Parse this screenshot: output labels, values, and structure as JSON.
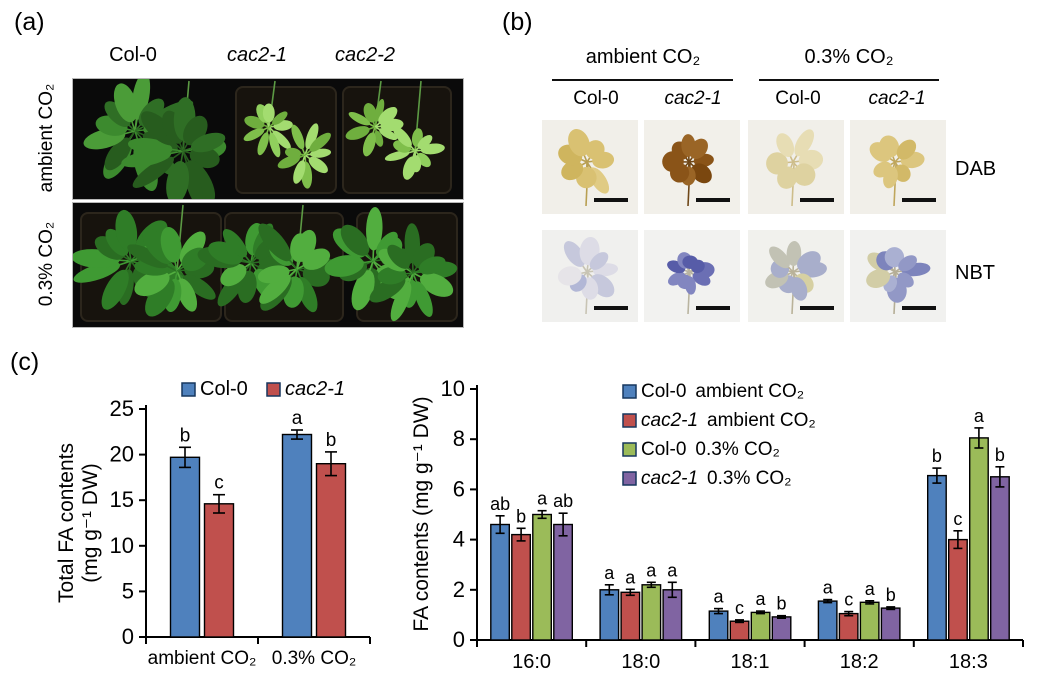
{
  "figure": {
    "panel_a": {
      "label": "(a)",
      "col_headers": [
        "Col-0",
        "cac2-1",
        "cac2-2"
      ],
      "row_labels": [
        "ambient CO₂",
        "0.3% CO₂"
      ]
    },
    "panel_b": {
      "label": "(b)",
      "group_headers": [
        "ambient CO₂",
        "0.3% CO₂"
      ],
      "col_headers": [
        "Col-0",
        "cac2-1",
        "Col-0",
        "cac2-1"
      ],
      "row_labels": [
        "DAB",
        "NBT"
      ]
    },
    "panel_c": {
      "label": "(c)"
    }
  },
  "chart_data": [
    {
      "type": "bar",
      "ylabel": "Total FA contents (mg g⁻¹ DW)",
      "ylabel_lines": [
        "Total FA contents",
        "(mg g⁻¹ DW)"
      ],
      "ylim": [
        0,
        25
      ],
      "yticks": [
        0,
        5,
        10,
        15,
        20,
        25
      ],
      "categories": [
        "ambient CO₂",
        "0.3% CO₂"
      ],
      "grid": false,
      "legend_position": "top",
      "series": [
        {
          "name": "Col-0",
          "italic": false,
          "color": "#4F81BD",
          "values": [
            19.7,
            22.2
          ],
          "errors": [
            1.1,
            0.5
          ],
          "sig_letters": [
            "b",
            "a"
          ]
        },
        {
          "name": "cac2-1",
          "italic": true,
          "color": "#C0504D",
          "values": [
            14.6,
            19.0
          ],
          "errors": [
            1.0,
            1.3
          ],
          "sig_letters": [
            "c",
            "b"
          ]
        }
      ]
    },
    {
      "type": "bar",
      "ylabel": "FA contents (mg g⁻¹ DW)",
      "ylim": [
        0,
        10
      ],
      "yticks": [
        0,
        2,
        4,
        6,
        8,
        10
      ],
      "categories": [
        "16:0",
        "18:0",
        "18:1",
        "18:2",
        "18:3"
      ],
      "grid": false,
      "legend_position": "top-center",
      "series": [
        {
          "name": "Col-0",
          "condition": "ambient CO₂",
          "italic": false,
          "color": "#4F81BD",
          "values": [
            4.6,
            2.0,
            1.15,
            1.55,
            6.55
          ],
          "errors": [
            0.35,
            0.2,
            0.1,
            0.06,
            0.3
          ],
          "sig_letters": [
            "ab",
            "a",
            "a",
            "a",
            "b"
          ]
        },
        {
          "name": "cac2-1",
          "condition": "ambient CO₂",
          "italic": true,
          "color": "#C0504D",
          "values": [
            4.2,
            1.9,
            0.75,
            1.05,
            4.0
          ],
          "errors": [
            0.25,
            0.12,
            0.05,
            0.08,
            0.35
          ],
          "sig_letters": [
            "b",
            "a",
            "c",
            "c",
            "c"
          ]
        },
        {
          "name": "Col-0",
          "condition": "0.3% CO₂",
          "italic": false,
          "color": "#9BBB59",
          "values": [
            5.0,
            2.2,
            1.1,
            1.5,
            8.05
          ],
          "errors": [
            0.15,
            0.1,
            0.05,
            0.06,
            0.4
          ],
          "sig_letters": [
            "a",
            "a",
            "a",
            "a",
            "a"
          ]
        },
        {
          "name": "cac2-1",
          "condition": "0.3% CO₂",
          "italic": true,
          "color": "#8064A2",
          "values": [
            4.6,
            2.0,
            0.92,
            1.27,
            6.5
          ],
          "errors": [
            0.45,
            0.3,
            0.05,
            0.05,
            0.4
          ],
          "sig_letters": [
            "ab",
            "a",
            "b",
            "b",
            "b"
          ]
        }
      ]
    }
  ]
}
